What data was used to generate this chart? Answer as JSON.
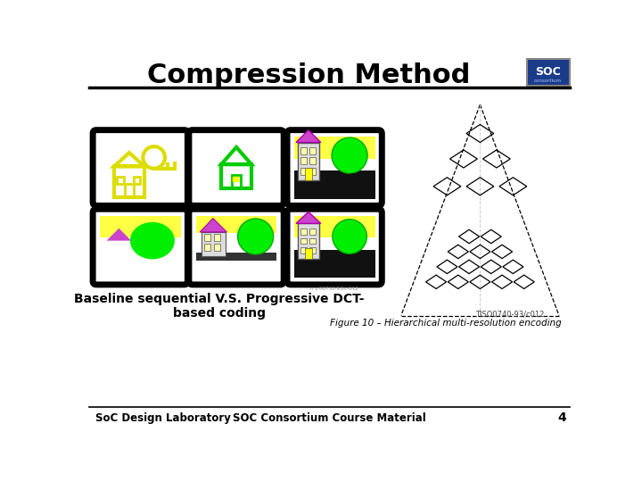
{
  "title": "Compression Method",
  "bg_color": "#ffffff",
  "title_fontsize": 22,
  "bottom_left_text": "SoC Design Laboratory",
  "bottom_center_text": "SOC Consortium Course Material",
  "bottom_right_text": "4",
  "caption_text": "Baseline sequential V.S. Progressive DCT-\nbased coding",
  "figure_caption": "Figure 10 – Hierarchical multi-resolution encoding",
  "iso_label": "TISO0740-93/c012"
}
